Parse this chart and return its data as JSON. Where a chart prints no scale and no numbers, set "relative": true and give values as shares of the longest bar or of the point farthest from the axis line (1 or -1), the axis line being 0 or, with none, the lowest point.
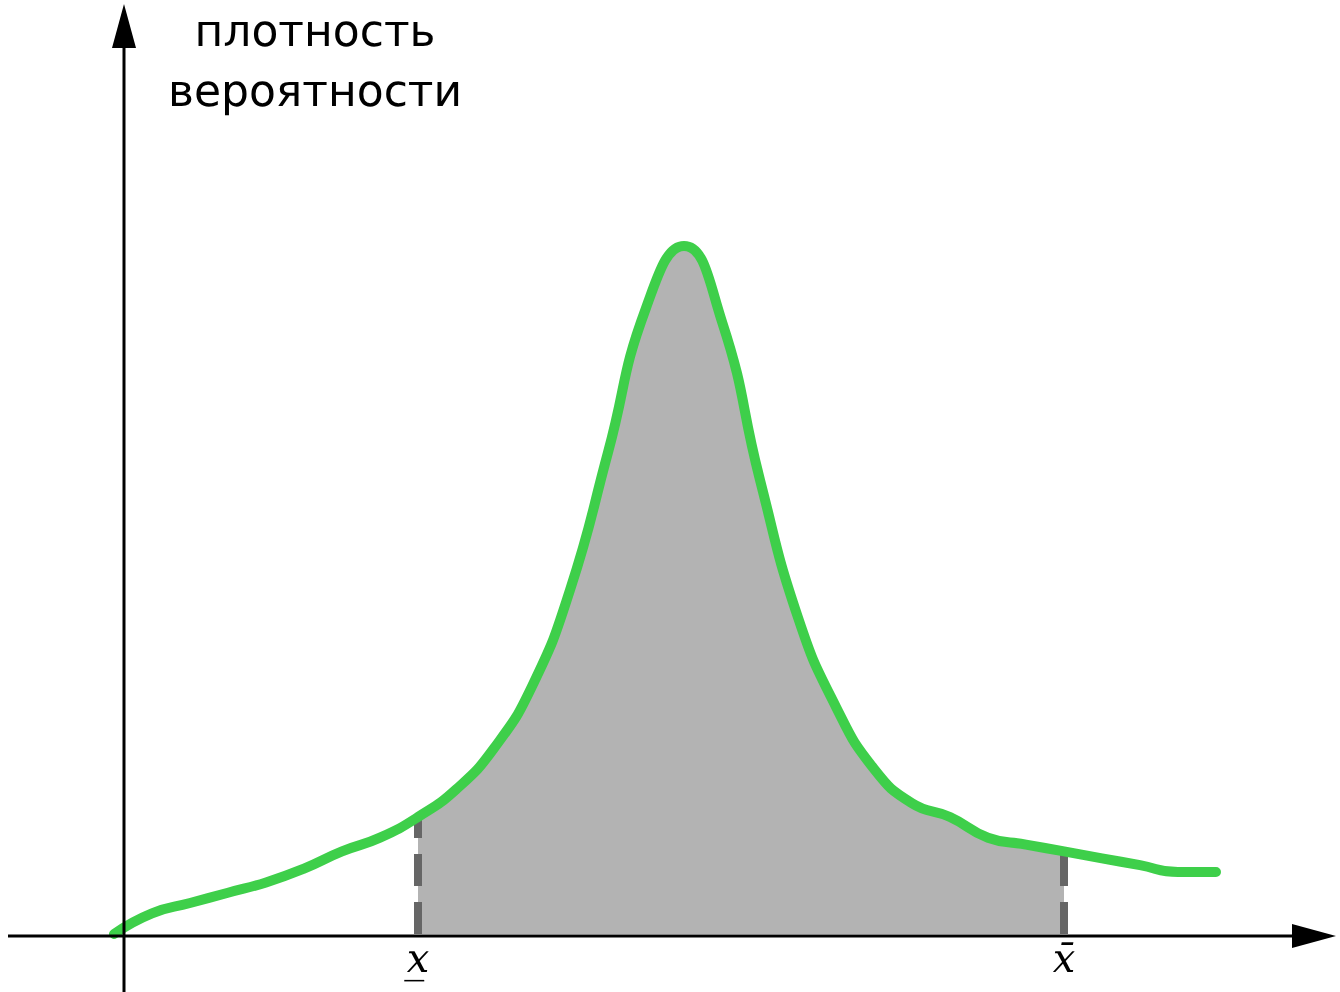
{
  "chart_data": {
    "type": "line",
    "relative": true,
    "ylabel": "плотность\nвероятности",
    "categories": [
      null,
      null,
      null,
      null,
      null,
      null,
      null,
      null,
      "x̲",
      null,
      null,
      null,
      null,
      null,
      null,
      null,
      null,
      null,
      null,
      null,
      null,
      null,
      null,
      null,
      null,
      "x̄",
      null,
      null,
      null,
      null
    ],
    "series": [
      {
        "type": "area",
        "color": "#b3b3b3",
        "values": [
          null,
          null,
          null,
          null,
          null,
          null,
          null,
          null,
          0.17,
          0.21,
          0.27,
          0.36,
          0.5,
          0.7,
          0.91,
          1.0,
          0.89,
          0.66,
          0.46,
          0.33,
          0.24,
          0.19,
          0.17,
          0.14,
          0.13,
          0.12,
          null,
          null,
          null,
          null
        ]
      },
      {
        "color": "#3ecf4a",
        "values": [
          0.0,
          0.03,
          0.045,
          0.06,
          0.075,
          0.095,
          0.12,
          0.14,
          0.17,
          0.21,
          0.27,
          0.36,
          0.5,
          0.7,
          0.91,
          1.0,
          0.89,
          0.66,
          0.46,
          0.33,
          0.24,
          0.19,
          0.17,
          0.14,
          0.13,
          0.12,
          0.11,
          0.1,
          0.09,
          0.09
        ]
      }
    ],
    "ref_lines": [
      {
        "axis": "x",
        "value": "x̲",
        "color": "#666666",
        "line_style": "dashed"
      },
      {
        "axis": "x",
        "value": "x̄",
        "color": "#666666",
        "line_style": "dashed"
      }
    ],
    "marker": "none"
  }
}
